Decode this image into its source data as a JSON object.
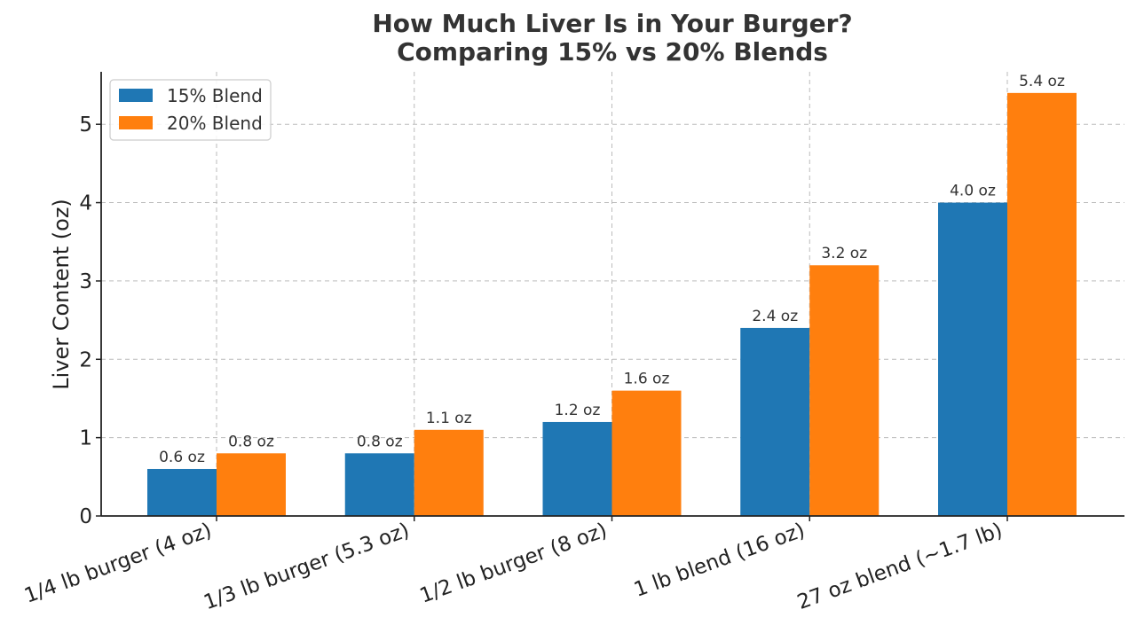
{
  "chart_data": {
    "type": "bar",
    "title_lines": [
      "How Much Liver Is in Your Burger?",
      "Comparing 15% vs 20% Blends"
    ],
    "xlabel": "",
    "ylabel": "Liver Content (oz)",
    "categories": [
      "1/4 lb burger (4 oz)",
      "1/3 lb burger (5.3 oz)",
      "1/2 lb burger (8 oz)",
      "1 lb blend (16 oz)",
      "27 oz blend (~1.7 lb)"
    ],
    "series": [
      {
        "name": "15% Blend",
        "color": "#1f77b4",
        "values": [
          0.6,
          0.8,
          1.2,
          2.4,
          4.0
        ],
        "labels": [
          "0.6 oz",
          "0.8 oz",
          "1.2 oz",
          "2.4 oz",
          "4.0 oz"
        ]
      },
      {
        "name": "20% Blend",
        "color": "#ff7f0e",
        "values": [
          0.8,
          1.1,
          1.6,
          3.2,
          5.4
        ],
        "labels": [
          "0.8 oz",
          "1.1 oz",
          "1.6 oz",
          "3.2 oz",
          "5.4 oz"
        ]
      }
    ],
    "ylim": [
      0,
      5.67
    ],
    "yticks": [
      0,
      1,
      2,
      3,
      4,
      5
    ],
    "ytick_labels": [
      "0",
      "1",
      "2",
      "3",
      "4",
      "5"
    ],
    "grid": true,
    "grid_style": "dashed",
    "legend_position": "top-left"
  }
}
